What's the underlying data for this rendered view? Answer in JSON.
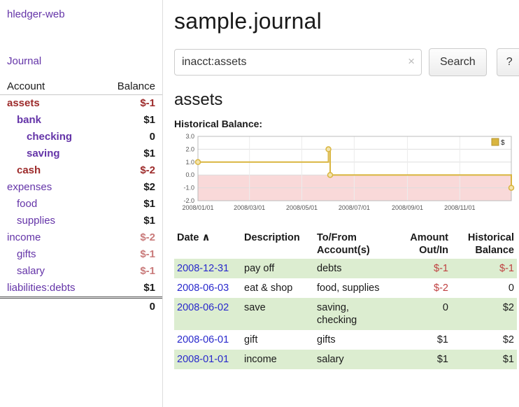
{
  "colors": {
    "link_purple": "#6434a8",
    "link_blue": "#2828cc",
    "negative_dark": "#9d2b2b",
    "negative_mid": "#bf4040",
    "negative_light": "#c97a7a",
    "row_green": "#dcedd0",
    "chart_line": "#d9b53f",
    "chart_marker_fill": "#f3e4ad",
    "chart_negative_fill": "#f9d9d9"
  },
  "sidebar": {
    "app_title": "hledger-web",
    "journal_link": "Journal",
    "accounts_table": {
      "headers": {
        "account": "Account",
        "balance": "Balance"
      },
      "rows": [
        {
          "name": "assets",
          "balance": "$-1"
        },
        {
          "name": "bank",
          "balance": "$1"
        },
        {
          "name": "checking",
          "balance": "0"
        },
        {
          "name": "saving",
          "balance": "$1"
        },
        {
          "name": "cash",
          "balance": "$-2"
        },
        {
          "name": "expenses",
          "balance": "$2"
        },
        {
          "name": "food",
          "balance": "$1"
        },
        {
          "name": "supplies",
          "balance": "$1"
        },
        {
          "name": "income",
          "balance": "$-2"
        },
        {
          "name": "gifts",
          "balance": "$-1"
        },
        {
          "name": "salary",
          "balance": "$-1"
        },
        {
          "name": "liabilities:debts",
          "balance": "$1"
        }
      ],
      "total": "0"
    }
  },
  "main": {
    "page_title": "sample.journal",
    "search": {
      "value": "inacct:assets",
      "clear_label": "×",
      "button_label": "Search",
      "help_label": "?"
    },
    "account_heading": "assets",
    "chart_label": "Historical Balance:",
    "chart": {
      "type": "step-line",
      "legend": "$",
      "ylim": [
        -2.0,
        3.0
      ],
      "y_ticks": [
        3.0,
        2.0,
        1.0,
        0.0,
        -1.0,
        -2.0
      ],
      "x_range": [
        "2008-01-01",
        "2008-12-31"
      ],
      "x_ticks": [
        "2008/01/01",
        "2008/03/01",
        "2008/05/01",
        "2008/07/01",
        "2008/09/01",
        "2008/11/01"
      ],
      "points": [
        [
          "2008-01-01",
          1
        ],
        [
          "2008-06-01",
          2
        ],
        [
          "2008-06-03",
          0
        ],
        [
          "2008-12-31",
          -1
        ]
      ]
    },
    "register": {
      "headers": {
        "date": "Date",
        "sort_indicator": "∧",
        "description": "Description",
        "account": "To/From Account(s)",
        "amount": "Amount Out/In",
        "balance": "Historical Balance"
      },
      "rows": [
        {
          "date": "2008-12-31",
          "description": "pay off",
          "account": "debts",
          "amount": "$-1",
          "balance": "$-1"
        },
        {
          "date": "2008-06-03",
          "description": "eat & shop",
          "account": "food, supplies",
          "amount": "$-2",
          "balance": "0"
        },
        {
          "date": "2008-06-02",
          "description": "save",
          "account": "saving,\nchecking",
          "amount": "0",
          "balance": "$2"
        },
        {
          "date": "2008-06-01",
          "description": "gift",
          "account": "gifts",
          "amount": "$1",
          "balance": "$2"
        },
        {
          "date": "2008-01-01",
          "description": "income",
          "account": "salary",
          "amount": "$1",
          "balance": "$1"
        }
      ]
    }
  }
}
